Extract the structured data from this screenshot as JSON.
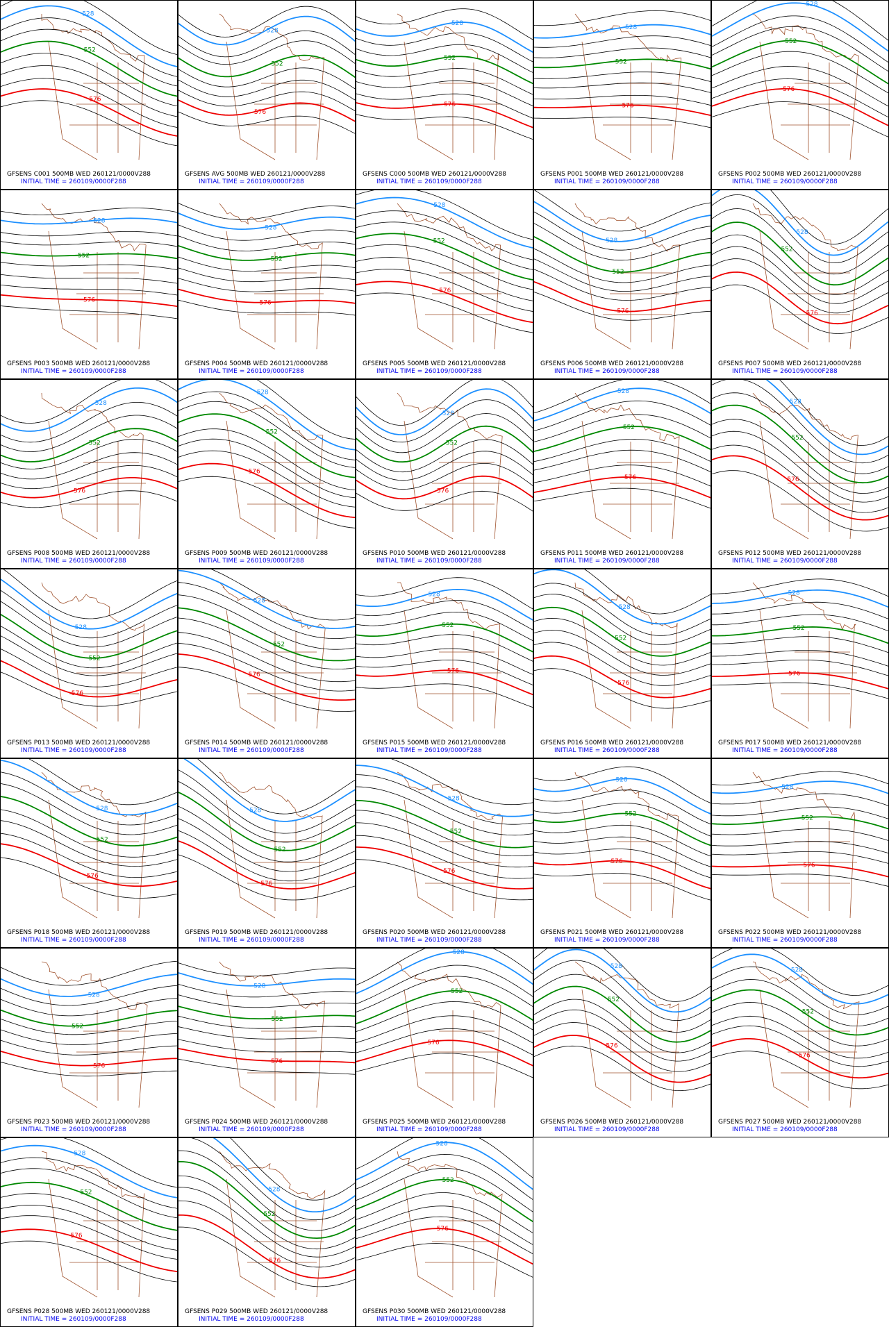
{
  "panels": [
    {
      "title": "GFSENS C001 500MB WED 260121/0000V288",
      "subtitle": "INITIAL TIME = 260109/0000F288",
      "contour_labels": [
        "576",
        "552",
        "528"
      ]
    },
    {
      "title": "GFSENS AVG 500MB WED 260121/0000V288",
      "subtitle": "INITIAL TIME = 260109/0000F288",
      "contour_labels": [
        "576",
        "552",
        "528"
      ]
    },
    {
      "title": "GFSENS C000 500MB WED 260121/0000V288",
      "subtitle": "INITIAL TIME = 260109/0000F288",
      "contour_labels": [
        "576",
        "552",
        "528"
      ]
    },
    {
      "title": "GFSENS P001 500MB WED 260121/0000V288",
      "subtitle": "INITIAL TIME = 260109/0000F288",
      "contour_labels": [
        "576",
        "552",
        "528"
      ]
    },
    {
      "title": "GFSENS P002 500MB WED 260121/0000V288",
      "subtitle": "INITIAL TIME = 260109/0000F288",
      "contour_labels": [
        "576",
        "552",
        "528"
      ]
    },
    {
      "title": "GFSENS P003 500MB WED 260121/0000V288",
      "subtitle": "INITIAL TIME = 260109/0000F288",
      "contour_labels": [
        "576",
        "552",
        "528"
      ]
    },
    {
      "title": "GFSENS P004 500MB WED 260121/0000V288",
      "subtitle": "INITIAL TIME = 260109/0000F288",
      "contour_labels": [
        "576",
        "552",
        "528"
      ]
    },
    {
      "title": "GFSENS P005 500MB WED 260121/0000V288",
      "subtitle": "INITIAL TIME = 260109/0000F288",
      "contour_labels": [
        "576",
        "552",
        "528"
      ]
    },
    {
      "title": "GFSENS P006 500MB WED 260121/0000V288",
      "subtitle": "INITIAL TIME = 260109/0000F288",
      "contour_labels": [
        "576",
        "552",
        "528"
      ]
    },
    {
      "title": "GFSENS P007 500MB WED 260121/0000V288",
      "subtitle": "INITIAL TIME = 260109/0000F288",
      "contour_labels": [
        "576",
        "552",
        "528"
      ]
    },
    {
      "title": "GFSENS P008 500MB WED 260121/0000V288",
      "subtitle": "INITIAL TIME = 260109/0000F288",
      "contour_labels": [
        "576",
        "552",
        "528"
      ]
    },
    {
      "title": "GFSENS P009 500MB WED 260121/0000V288",
      "subtitle": "INITIAL TIME = 260109/0000F288",
      "contour_labels": [
        "576",
        "552",
        "528"
      ]
    },
    {
      "title": "GFSENS P010 500MB WED 260121/0000V288",
      "subtitle": "INITIAL TIME = 260109/0000F288",
      "contour_labels": [
        "576",
        "552",
        "528"
      ]
    },
    {
      "title": "GFSENS P011 500MB WED 260121/0000V288",
      "subtitle": "INITIAL TIME = 260109/0000F288",
      "contour_labels": [
        "576",
        "552",
        "528"
      ]
    },
    {
      "title": "GFSENS P012 500MB WED 260121/0000V288",
      "subtitle": "INITIAL TIME = 260109/0000F288",
      "contour_labels": [
        "576",
        "552",
        "528"
      ]
    },
    {
      "title": "GFSENS P013 500MB WED 260121/0000V288",
      "subtitle": "INITIAL TIME = 260109/0000F288",
      "contour_labels": [
        "576",
        "552",
        "528"
      ]
    },
    {
      "title": "GFSENS P014 500MB WED 260121/0000V288",
      "subtitle": "INITIAL TIME = 260109/0000F288",
      "contour_labels": [
        "576",
        "552",
        "528"
      ]
    },
    {
      "title": "GFSENS P015 500MB WED 260121/0000V288",
      "subtitle": "INITIAL TIME = 260109/0000F288",
      "contour_labels": [
        "576",
        "552",
        "528"
      ]
    },
    {
      "title": "GFSENS P016 500MB WED 260121/0000V288",
      "subtitle": "INITIAL TIME = 260109/0000F288",
      "contour_labels": [
        "576",
        "552",
        "528"
      ]
    },
    {
      "title": "GFSENS P017 500MB WED 260121/0000V288",
      "subtitle": "INITIAL TIME = 260109/0000F288",
      "contour_labels": [
        "576",
        "552",
        "528"
      ]
    },
    {
      "title": "GFSENS P018 500MB WED 260121/0000V288",
      "subtitle": "INITIAL TIME = 260109/0000F288",
      "contour_labels": [
        "576",
        "552",
        "528"
      ]
    },
    {
      "title": "GFSENS P019 500MB WED 260121/0000V288",
      "subtitle": "INITIAL TIME = 260109/0000F288",
      "contour_labels": [
        "576",
        "552",
        "528"
      ]
    },
    {
      "title": "GFSENS P020 500MB WED 260121/0000V288",
      "subtitle": "INITIAL TIME = 260109/0000F288",
      "contour_labels": [
        "576",
        "552",
        "528"
      ]
    },
    {
      "title": "GFSENS P021 500MB WED 260121/0000V288",
      "subtitle": "INITIAL TIME = 260109/0000F288",
      "contour_labels": [
        "576",
        "552",
        "528"
      ]
    },
    {
      "title": "GFSENS P022 500MB WED 260121/0000V288",
      "subtitle": "INITIAL TIME = 260109/0000F288",
      "contour_labels": [
        "576",
        "552",
        "528"
      ]
    },
    {
      "title": "GFSENS P023 500MB WED 260121/0000V288",
      "subtitle": "INITIAL TIME = 260109/0000F288",
      "contour_labels": [
        "576",
        "552",
        "528"
      ]
    },
    {
      "title": "GFSENS P024 500MB WED 260121/0000V288",
      "subtitle": "INITIAL TIME = 260109/0000F288",
      "contour_labels": [
        "576",
        "552",
        "528"
      ]
    },
    {
      "title": "GFSENS P025 500MB WED 260121/0000V288",
      "subtitle": "INITIAL TIME = 260109/0000F288",
      "contour_labels": [
        "576",
        "552",
        "528"
      ]
    },
    {
      "title": "GFSENS P026 500MB WED 260121/0000V288",
      "subtitle": "INITIAL TIME = 260109/0000F288",
      "contour_labels": [
        "576",
        "552",
        "528"
      ]
    },
    {
      "title": "GFSENS P027 500MB WED 260121/0000V288",
      "subtitle": "INITIAL TIME = 260109/0000F288",
      "contour_labels": [
        "576",
        "552",
        "528"
      ]
    },
    {
      "title": "GFSENS P028 500MB WED 260121/0000V288",
      "subtitle": "INITIAL TIME = 260109/0000F288",
      "contour_labels": [
        "576",
        "552",
        "528"
      ]
    },
    {
      "title": "GFSENS P029 500MB WED 260121/0000V288",
      "subtitle": "INITIAL TIME = 260109/0000F288",
      "contour_labels": [
        "576",
        "552",
        "528"
      ]
    },
    {
      "title": "GFSENS P030 500MB WED 260121/0000V288",
      "subtitle": "INITIAL TIME = 260109/0000F288",
      "contour_labels": [
        "576",
        "552",
        "528"
      ]
    }
  ]
}
